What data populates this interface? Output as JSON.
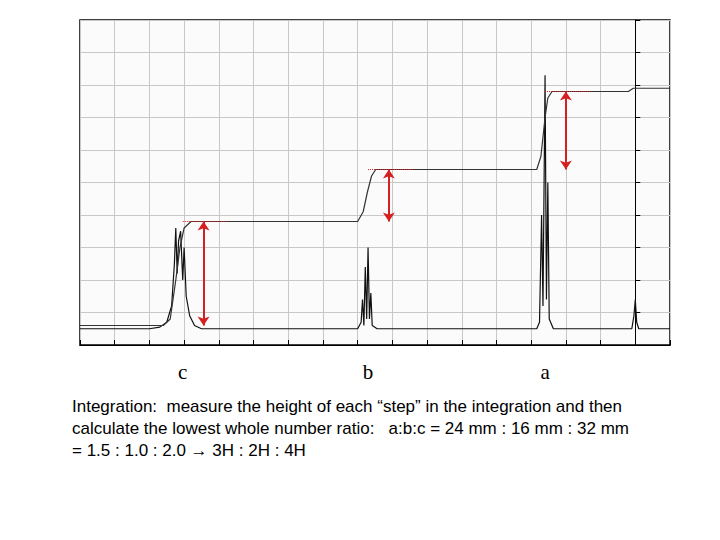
{
  "chart_data": {
    "type": "line",
    "xlim": [
      8,
      -0.5
    ],
    "xticks": [
      -0.5,
      0,
      0.5,
      1,
      1.5,
      2,
      2.5,
      3,
      3.5,
      4,
      4.5,
      5,
      5.5,
      6,
      6.5,
      7,
      7.5,
      8
    ],
    "ylim": [
      0,
      100
    ],
    "yticks": [
      0,
      10,
      20,
      30,
      40,
      50,
      60,
      70,
      80,
      90,
      100
    ],
    "grid": true,
    "tick_labels": false,
    "series": [
      {
        "color": "#111111",
        "x": [
          8,
          7.0,
          6.85,
          6.75,
          6.68,
          6.64,
          6.62,
          6.6,
          6.58,
          6.55,
          6.52,
          6.5,
          6.47,
          6.42,
          6.35,
          6.25,
          4.0,
          3.95,
          3.93,
          3.91,
          3.89,
          3.87,
          3.85,
          3.83,
          3.81,
          3.79,
          3.72,
          1.42,
          1.38,
          1.35,
          1.33,
          1.3,
          1.28,
          1.26,
          1.24,
          1.18,
          0.05,
          0.02,
          0,
          -0.02,
          -0.05,
          -0.5
        ],
        "values": [
          5,
          5,
          5.5,
          7,
          12,
          25,
          36,
          22,
          32,
          35,
          20,
          30,
          15,
          9,
          6,
          5,
          5,
          7,
          14,
          6,
          24,
          8,
          30,
          8,
          16,
          6,
          5,
          5,
          7,
          40,
          12,
          83,
          14,
          50,
          8,
          5,
          5,
          9,
          14,
          7,
          5,
          5
        ]
      },
      {
        "color": "#333333",
        "x": [
          8,
          6.8,
          6.7,
          6.62,
          6.56,
          6.5,
          6.4,
          4.0,
          3.92,
          3.86,
          3.8,
          3.74,
          1.42,
          1.36,
          1.3,
          1.26,
          1.2,
          0.1,
          0.03,
          -0.5
        ],
        "values": [
          6,
          6,
          8,
          20,
          30,
          36,
          38,
          38,
          41,
          47,
          52,
          54,
          54,
          58,
          70,
          76,
          78,
          78,
          79,
          79
        ]
      }
    ],
    "steps": [
      {
        "label": "c",
        "x": 6.52,
        "low": 6,
        "high": 38,
        "color": "#d42020"
      },
      {
        "label": "b",
        "x": 3.85,
        "low": 38,
        "high": 54,
        "color": "#d42020"
      },
      {
        "label": "a",
        "x": 1.3,
        "low": 54,
        "high": 78,
        "color": "#d42020"
      }
    ]
  },
  "caption": [
    "Integration:  measure the height of each “step” in the integration and then",
    "calculate the lowest whole number ratio:   a:b:c = 24 mm : 16 mm : 32 mm",
    "= 1.5 : 1.0 : 2.0 → 3H : 2H : 4H"
  ]
}
